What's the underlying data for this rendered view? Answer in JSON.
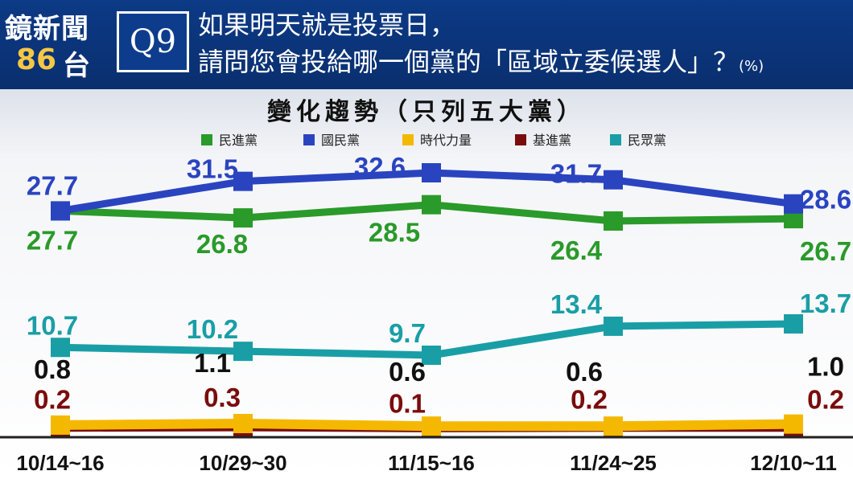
{
  "header": {
    "brand": "鏡新聞",
    "channel_number": "86",
    "channel_suffix": "台",
    "question_tag": "Q9",
    "question_line1": "如果明天就是投票日，",
    "question_line2": "請問您會投給哪一個黨的「區域立委候選人」？",
    "unit": "(%)"
  },
  "chart_data": {
    "type": "line",
    "title": "變化趨勢（只列五大黨）",
    "categories": [
      "10/14~16",
      "10/29~30",
      "11/15~16",
      "11/24~25",
      "12/10~11"
    ],
    "series": [
      {
        "name": "民進黨",
        "color": "#2a9a2a",
        "values": [
          27.7,
          26.8,
          28.5,
          26.4,
          26.7
        ]
      },
      {
        "name": "國民黨",
        "color": "#2a44c0",
        "values": [
          27.7,
          31.5,
          32.6,
          31.7,
          28.6
        ]
      },
      {
        "name": "時代力量",
        "color": "#f5b800",
        "values": [
          0.8,
          1.1,
          0.6,
          0.6,
          1.0
        ]
      },
      {
        "name": "基進黨",
        "color": "#7a0c0c",
        "values": [
          0.2,
          0.3,
          0.1,
          0.2,
          0.2
        ]
      },
      {
        "name": "民眾黨",
        "color": "#1a9ea6",
        "values": [
          10.7,
          10.2,
          9.7,
          13.4,
          13.7
        ]
      }
    ]
  }
}
